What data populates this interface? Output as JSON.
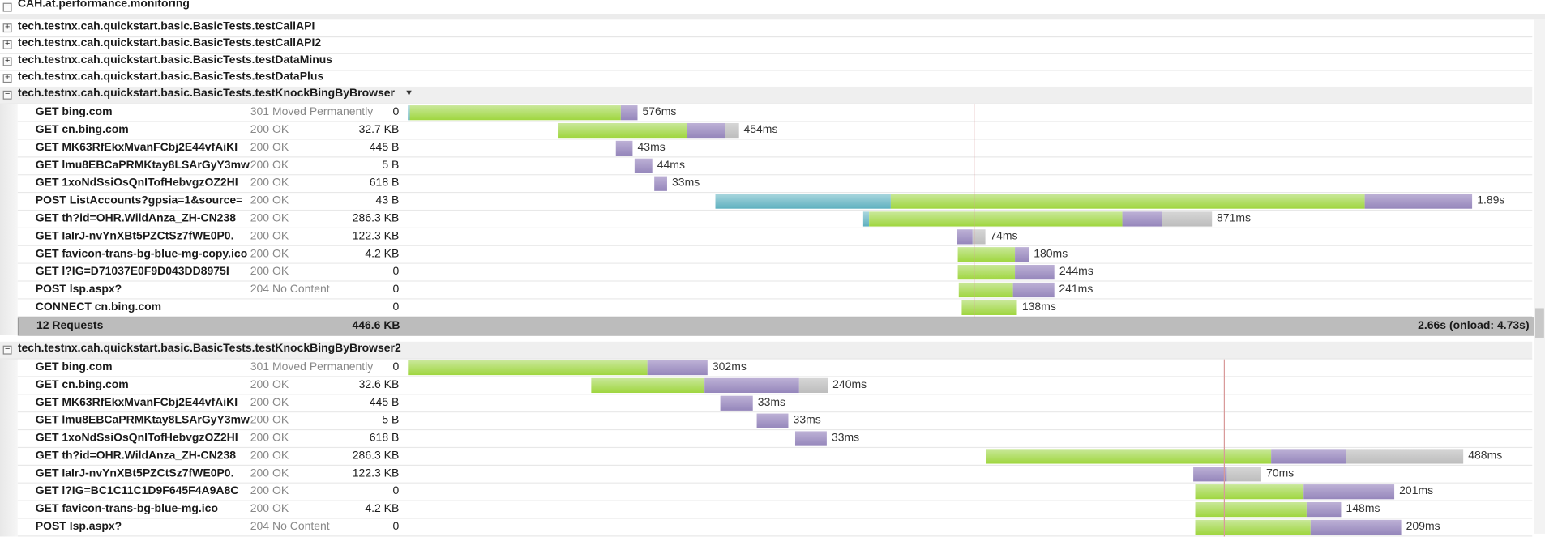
{
  "root": {
    "label": "CAH.at.performance.monitoring",
    "expanded": true
  },
  "collapsed_tests": [
    {
      "label": "tech.testnx.cah.quickstart.basic.BasicTests.testCallAPI"
    },
    {
      "label": "tech.testnx.cah.quickstart.basic.BasicTests.testCallAPI2"
    },
    {
      "label": "tech.testnx.cah.quickstart.basic.BasicTests.testDataMinus"
    },
    {
      "label": "tech.testnx.cah.quickstart.basic.BasicTests.testDataPlus"
    }
  ],
  "phase_colors": {
    "blocked": "#5eb0bf",
    "wait": "#9fd63f",
    "receive": "#9586bb",
    "other": "#bdbdbd"
  },
  "groups": [
    {
      "label": "tech.testnx.cah.quickstart.basic.BasicTests.testKnockBingByBrowser",
      "has_dropdown": true,
      "timeline_ms": 2807,
      "marker_ms": 1412,
      "requests": [
        {
          "name": "GET bing.com",
          "status": "301 Moved Permanently",
          "size": "0",
          "duration": "576ms",
          "start_ms": 0,
          "phases": [
            [
              "blue",
              5
            ],
            [
              "green",
              526
            ],
            [
              "purple",
              42
            ]
          ]
        },
        {
          "name": "GET cn.bing.com",
          "status": "200 OK",
          "size": "32.7 KB",
          "duration": "454ms",
          "start_ms": 374,
          "phases": [
            [
              "green",
              322
            ],
            [
              "purple",
              96
            ],
            [
              "gray",
              34
            ]
          ]
        },
        {
          "name": "GET MK63RfEkxMvanFCbj2E44vfAiKI",
          "status": "200 OK",
          "size": "445 B",
          "duration": "43ms",
          "start_ms": 519,
          "phases": [
            [
              "purple",
              42
            ]
          ]
        },
        {
          "name": "GET lmu8EBCaPRMKtay8LSArGyY3mw",
          "status": "200 OK",
          "size": "5 B",
          "duration": "44ms",
          "start_ms": 566,
          "phases": [
            [
              "purple",
              44
            ]
          ]
        },
        {
          "name": "GET 1xoNdSsiOsQnITofHebvgzOZ2HI",
          "status": "200 OK",
          "size": "618 B",
          "duration": "33ms",
          "start_ms": 615,
          "phases": [
            [
              "purple",
              32
            ]
          ]
        },
        {
          "name": "POST ListAccounts?gpsia=1&source=",
          "status": "200 OK",
          "size": "43 B",
          "duration": "1.89s",
          "start_ms": 768,
          "phases": [
            [
              "blue",
              438
            ],
            [
              "green",
              1183
            ],
            [
              "purple",
              268
            ]
          ]
        },
        {
          "name": "GET th?id=OHR.WildAnza_ZH-CN238",
          "status": "200 OK",
          "size": "286.3 KB",
          "duration": "871ms",
          "start_ms": 1137,
          "phases": [
            [
              "blue",
              15
            ],
            [
              "green",
              632
            ],
            [
              "purple",
              98
            ],
            [
              "gray",
              125
            ]
          ]
        },
        {
          "name": "GET IaIrJ-nvYnXBt5PZCtSz7fWE0P0.",
          "status": "200 OK",
          "size": "122.3 KB",
          "duration": "74ms",
          "start_ms": 1370,
          "phases": [
            [
              "purple",
              39
            ],
            [
              "gray",
              32
            ]
          ]
        },
        {
          "name": "GET favicon-trans-bg-blue-mg-copy.ico",
          "status": "200 OK",
          "size": "4.2 KB",
          "duration": "180ms",
          "start_ms": 1373,
          "phases": [
            [
              "green",
              143
            ],
            [
              "purple",
              34
            ]
          ]
        },
        {
          "name": "GET l?IG=D71037E0F9D043DD8975I",
          "status": "200 OK",
          "size": "0",
          "duration": "244ms",
          "start_ms": 1373,
          "phases": [
            [
              "green",
              143
            ],
            [
              "purple",
              98
            ]
          ]
        },
        {
          "name": "POST lsp.aspx?",
          "status": "204 No Content",
          "size": "0",
          "duration": "241ms",
          "start_ms": 1375,
          "phases": [
            [
              "green",
              135
            ],
            [
              "purple",
              103
            ]
          ]
        },
        {
          "name": "CONNECT cn.bing.com",
          "status": "",
          "size": "0",
          "duration": "138ms",
          "start_ms": 1383,
          "phases": [
            [
              "green",
              138
            ]
          ]
        }
      ],
      "summary": {
        "count": "12 Requests",
        "size": "446.6 KB",
        "time": "2.66s (onload: 4.73s)"
      }
    },
    {
      "label": "tech.testnx.cah.quickstart.basic.BasicTests.testKnockBingByBrowser2",
      "has_dropdown": false,
      "timeline_ms": 1141,
      "marker_ms": 828,
      "requests": [
        {
          "name": "GET bing.com",
          "status": "301 Moved Permanently",
          "size": "0",
          "duration": "302ms",
          "start_ms": 0,
          "phases": [
            [
              "green",
              243
            ],
            [
              "purple",
              61
            ]
          ]
        },
        {
          "name": "GET cn.bing.com",
          "status": "200 OK",
          "size": "32.6 KB",
          "duration": "240ms",
          "start_ms": 186,
          "phases": [
            [
              "green",
              115
            ],
            [
              "purple",
              96
            ],
            [
              "gray",
              29
            ]
          ]
        },
        {
          "name": "GET MK63RfEkxMvanFCbj2E44vfAiKI",
          "status": "200 OK",
          "size": "445 B",
          "duration": "33ms",
          "start_ms": 317,
          "phases": [
            [
              "purple",
              33
            ]
          ]
        },
        {
          "name": "GET lmu8EBCaPRMKtay8LSArGyY3mw",
          "status": "200 OK",
          "size": "5 B",
          "duration": "33ms",
          "start_ms": 354,
          "phases": [
            [
              "purple",
              32
            ]
          ]
        },
        {
          "name": "GET 1xoNdSsiOsQnITofHebvgzOZ2HI",
          "status": "200 OK",
          "size": "618 B",
          "duration": "33ms",
          "start_ms": 393,
          "phases": [
            [
              "purple",
              32
            ]
          ]
        },
        {
          "name": "GET th?id=OHR.WildAnza_ZH-CN238",
          "status": "200 OK",
          "size": "286.3 KB",
          "duration": "488ms",
          "start_ms": 587,
          "phases": [
            [
              "green",
              289
            ],
            [
              "purple",
              76
            ],
            [
              "gray",
              119
            ]
          ]
        },
        {
          "name": "GET IaIrJ-nvYnXBt5PZCtSz7fWE0P0.",
          "status": "200 OK",
          "size": "122.3 KB",
          "duration": "70ms",
          "start_ms": 797,
          "phases": [
            [
              "purple",
              34
            ],
            [
              "gray",
              35
            ]
          ]
        },
        {
          "name": "GET l?IG=BC1C11C1D9F645F4A9A8C",
          "status": "200 OK",
          "size": "0",
          "duration": "201ms",
          "start_ms": 799,
          "phases": [
            [
              "green",
              110
            ],
            [
              "purple",
              92
            ]
          ]
        },
        {
          "name": "GET favicon-trans-bg-blue-mg.ico",
          "status": "200 OK",
          "size": "4.2 KB",
          "duration": "148ms",
          "start_ms": 799,
          "phases": [
            [
              "green",
              113
            ],
            [
              "purple",
              35
            ]
          ]
        },
        {
          "name": "POST lsp.aspx?",
          "status": "204 No Content",
          "size": "0",
          "duration": "209ms",
          "start_ms": 799,
          "phases": [
            [
              "green",
              117
            ],
            [
              "purple",
              92
            ]
          ]
        }
      ]
    }
  ]
}
